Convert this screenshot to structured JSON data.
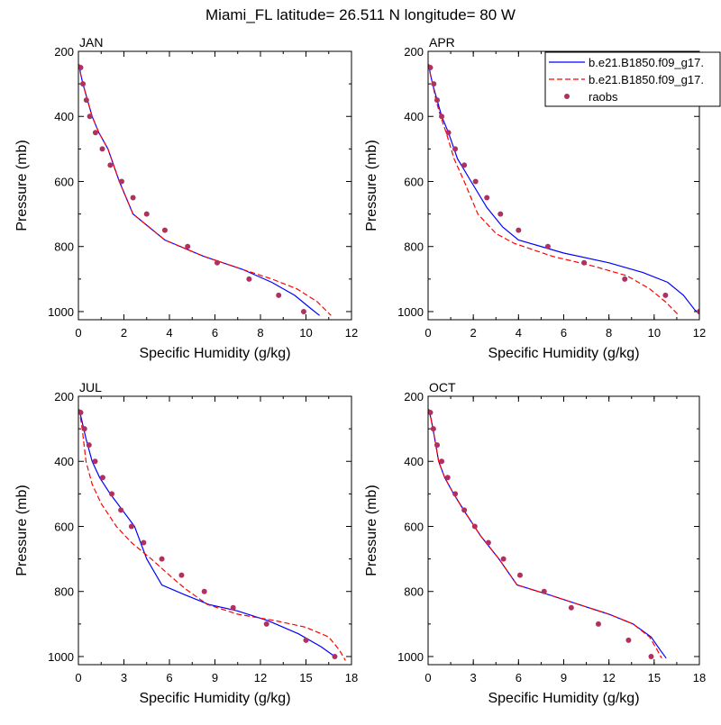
{
  "title": "Miami_FL  latitude= 26.511 N longitude= 80 W",
  "colors": {
    "model1": "#0000ff",
    "model2": "#ff0000",
    "raobs": "#b03060"
  },
  "legend": {
    "placement": "top-right",
    "entries": [
      {
        "key": "model1",
        "label": "b.e21.B1850.f09_g17.",
        "style": "solid-line"
      },
      {
        "key": "model2",
        "label": "b.e21.B1850.f09_g17.",
        "style": "dashed-line"
      },
      {
        "key": "raobs",
        "label": "raobs",
        "style": "marker"
      }
    ]
  },
  "chart_data": [
    {
      "type": "line",
      "title": "JAN",
      "xlabel": "Specific Humidity (g/kg)",
      "ylabel": "Pressure (mb)",
      "xlim": [
        0,
        12
      ],
      "ylim": [
        200,
        1025
      ],
      "y_reversed": true,
      "xticks": [
        0,
        2,
        4,
        6,
        8,
        10,
        12
      ],
      "yticks": [
        200,
        400,
        600,
        800,
        1000
      ],
      "series": [
        {
          "key": "model1",
          "kind": "line",
          "dash": false,
          "x": [
            0.03,
            0.1,
            0.2,
            0.4,
            0.6,
            0.9,
            1.3,
            1.8,
            2.4,
            3.1,
            3.8,
            5.5,
            7.2,
            8.5,
            9.5,
            10.2,
            10.6
          ],
          "y": [
            240,
            270,
            300,
            350,
            400,
            450,
            500,
            600,
            700,
            740,
            780,
            830,
            870,
            910,
            950,
            990,
            1012
          ]
        },
        {
          "key": "model2",
          "kind": "line",
          "dash": true,
          "x": [
            0.03,
            0.1,
            0.2,
            0.4,
            0.6,
            0.9,
            1.3,
            1.8,
            2.4,
            3.1,
            3.8,
            5.5,
            7.2,
            8.5,
            9.6,
            10.5,
            11.1
          ],
          "y": [
            240,
            270,
            300,
            350,
            400,
            450,
            500,
            600,
            700,
            740,
            780,
            830,
            870,
            900,
            930,
            970,
            1012
          ]
        },
        {
          "key": "raobs",
          "kind": "scatter",
          "x": [
            0.1,
            0.2,
            0.35,
            0.5,
            0.75,
            1.05,
            1.4,
            1.9,
            2.4,
            3.0,
            3.8,
            4.8,
            6.1,
            7.5,
            8.8,
            9.9
          ],
          "y": [
            250,
            300,
            350,
            400,
            450,
            500,
            550,
            600,
            650,
            700,
            750,
            800,
            850,
            900,
            950,
            1000
          ]
        }
      ]
    },
    {
      "type": "line",
      "title": "APR",
      "xlabel": "Specific Humidity (g/kg)",
      "ylabel": "Pressure (mb)",
      "xlim": [
        0,
        12
      ],
      "ylim": [
        200,
        1025
      ],
      "y_reversed": true,
      "xticks": [
        0,
        2,
        4,
        6,
        8,
        10,
        12
      ],
      "yticks": [
        200,
        400,
        600,
        800,
        1000
      ],
      "series": [
        {
          "key": "model1",
          "kind": "line",
          "dash": false,
          "x": [
            0.03,
            0.1,
            0.2,
            0.4,
            0.6,
            0.9,
            1.3,
            1.9,
            2.6,
            3.3,
            4.0,
            6.0,
            8.0,
            9.5,
            10.6,
            11.3,
            11.8,
            12.0
          ],
          "y": [
            240,
            270,
            300,
            350,
            400,
            450,
            530,
            600,
            680,
            740,
            780,
            820,
            850,
            880,
            910,
            950,
            995,
            1005
          ]
        },
        {
          "key": "model2",
          "kind": "line",
          "dash": true,
          "x": [
            0.03,
            0.1,
            0.2,
            0.35,
            0.55,
            0.8,
            1.15,
            1.6,
            2.2,
            3.0,
            3.8,
            5.5,
            7.3,
            8.8,
            9.8,
            10.5,
            11.1
          ],
          "y": [
            240,
            270,
            300,
            350,
            400,
            450,
            530,
            600,
            700,
            760,
            790,
            830,
            860,
            890,
            930,
            970,
            1012
          ]
        },
        {
          "key": "raobs",
          "kind": "scatter",
          "x": [
            0.1,
            0.25,
            0.4,
            0.6,
            0.9,
            1.2,
            1.6,
            2.1,
            2.6,
            3.2,
            4.0,
            5.3,
            6.9,
            8.7,
            10.5,
            12.0
          ],
          "y": [
            250,
            300,
            350,
            400,
            450,
            500,
            550,
            600,
            650,
            700,
            750,
            800,
            850,
            900,
            950,
            1000
          ]
        }
      ]
    },
    {
      "type": "line",
      "title": "JUL",
      "xlabel": "Specific Humidity (g/kg)",
      "ylabel": "Pressure (mb)",
      "xlim": [
        0,
        18
      ],
      "ylim": [
        200,
        1025
      ],
      "y_reversed": true,
      "xticks": [
        0,
        3,
        6,
        9,
        12,
        15,
        18
      ],
      "yticks": [
        200,
        400,
        600,
        800,
        1000
      ],
      "series": [
        {
          "key": "model1",
          "kind": "line",
          "dash": false,
          "x": [
            0.05,
            0.2,
            0.5,
            0.9,
            1.4,
            2.1,
            2.9,
            3.7,
            4.5,
            5.5,
            7.0,
            8.6,
            10.5,
            12.5,
            14.5,
            16.0,
            16.9
          ],
          "y": [
            240,
            270,
            330,
            400,
            450,
            500,
            550,
            600,
            700,
            780,
            810,
            840,
            860,
            890,
            930,
            970,
            1000
          ]
        },
        {
          "key": "model2",
          "kind": "line",
          "dash": true,
          "x": [
            0.05,
            0.25,
            0.5,
            0.9,
            1.5,
            2.5,
            3.5,
            4.8,
            6.0,
            7.0,
            8.5,
            10.5,
            13.0,
            15.0,
            16.5,
            17.2,
            17.6
          ],
          "y": [
            240,
            300,
            400,
            470,
            530,
            600,
            650,
            700,
            750,
            790,
            840,
            870,
            890,
            910,
            940,
            980,
            1012
          ]
        },
        {
          "key": "raobs",
          "kind": "scatter",
          "x": [
            0.15,
            0.4,
            0.7,
            1.1,
            1.6,
            2.2,
            2.8,
            3.5,
            4.3,
            5.5,
            6.8,
            8.3,
            10.2,
            12.4,
            15.0,
            16.9
          ],
          "y": [
            250,
            300,
            350,
            400,
            450,
            500,
            550,
            600,
            650,
            700,
            750,
            800,
            850,
            900,
            950,
            1000
          ]
        }
      ]
    },
    {
      "type": "line",
      "title": "OCT",
      "xlabel": "Specific Humidity (g/kg)",
      "ylabel": "Pressure (mb)",
      "xlim": [
        0,
        18
      ],
      "ylim": [
        200,
        1025
      ],
      "y_reversed": true,
      "xticks": [
        0,
        3,
        6,
        9,
        12,
        15,
        18
      ],
      "yticks": [
        200,
        400,
        600,
        800,
        1000
      ],
      "series": [
        {
          "key": "model1",
          "kind": "line",
          "dash": false,
          "x": [
            0.05,
            0.2,
            0.4,
            0.7,
            1.1,
            1.7,
            2.5,
            3.5,
            4.7,
            5.9,
            8.0,
            10.0,
            12.0,
            13.6,
            14.8,
            15.4,
            15.8
          ],
          "y": [
            240,
            270,
            320,
            400,
            450,
            500,
            560,
            630,
            700,
            780,
            810,
            840,
            870,
            900,
            940,
            980,
            1005
          ]
        },
        {
          "key": "model2",
          "kind": "line",
          "dash": true,
          "x": [
            0.05,
            0.2,
            0.4,
            0.7,
            1.1,
            1.7,
            2.5,
            3.5,
            4.7,
            5.9,
            8.0,
            10.0,
            12.0,
            13.6,
            14.7,
            15.2,
            15.5
          ],
          "y": [
            240,
            270,
            320,
            400,
            450,
            500,
            560,
            630,
            700,
            780,
            810,
            840,
            870,
            900,
            940,
            980,
            1005
          ]
        },
        {
          "key": "raobs",
          "kind": "scatter",
          "x": [
            0.15,
            0.35,
            0.6,
            0.9,
            1.3,
            1.8,
            2.4,
            3.1,
            4.0,
            5.0,
            6.1,
            7.7,
            9.5,
            11.3,
            13.3,
            14.8
          ],
          "y": [
            250,
            300,
            350,
            400,
            450,
            500,
            550,
            600,
            650,
            700,
            750,
            800,
            850,
            900,
            950,
            1000
          ]
        }
      ]
    }
  ]
}
